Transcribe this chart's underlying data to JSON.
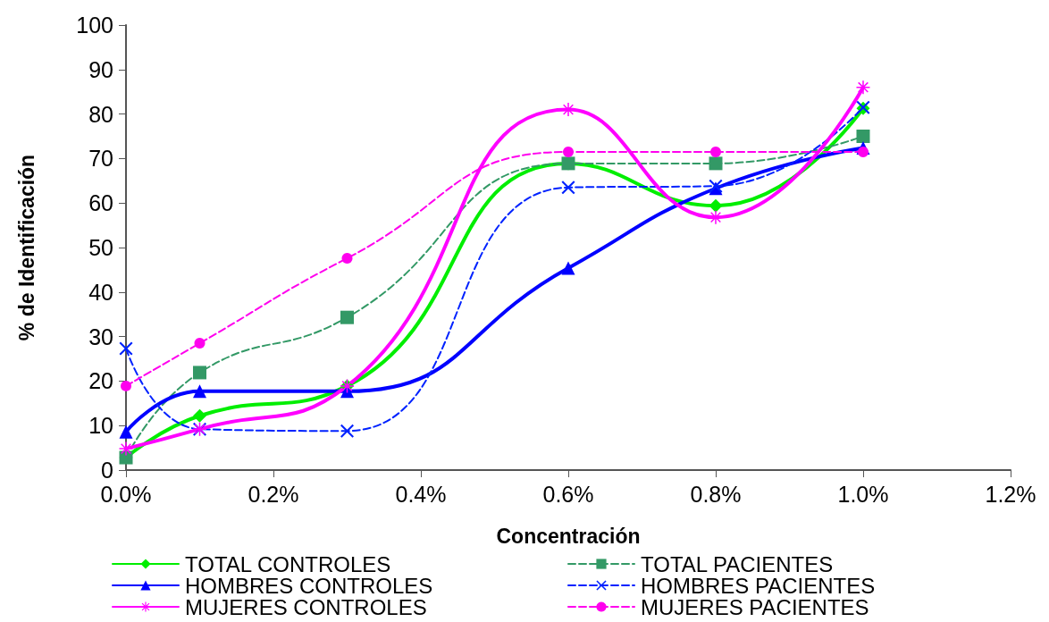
{
  "chart_data": {
    "type": "line",
    "xlabel": "Concentración",
    "ylabel": "% de Identificación",
    "x": [
      0,
      0.1,
      0.3,
      0.6,
      0.8,
      1.0
    ],
    "xlim": [
      0,
      1.2
    ],
    "xticks": [
      {
        "value": 0,
        "label": "0.0%"
      },
      {
        "value": 0.2,
        "label": "0.2%"
      },
      {
        "value": 0.4,
        "label": "0.4%"
      },
      {
        "value": 0.6,
        "label": "0.6%"
      },
      {
        "value": 0.8,
        "label": "0.8%"
      },
      {
        "value": 1.0,
        "label": "1.0%"
      },
      {
        "value": 1.2,
        "label": "1.2%"
      }
    ],
    "ylim": [
      0,
      100
    ],
    "yticks": [
      0,
      10,
      20,
      30,
      40,
      50,
      60,
      70,
      80,
      90,
      100
    ],
    "grid": false,
    "legend": "bottom",
    "series": [
      {
        "name": "TOTAL CONTROLES",
        "color": "#00ee00",
        "marker": "diamond",
        "line_style": "solid",
        "values": [
          2.8,
          12.2,
          18.9,
          68.9,
          59.4,
          81.3
        ]
      },
      {
        "name": "TOTAL PACIENTES",
        "color": "#339966",
        "marker": "square",
        "line_style": "dashed",
        "values": [
          2.8,
          21.9,
          34.3,
          68.9,
          68.9,
          75
        ]
      },
      {
        "name": "HOMBRES CONTROLES",
        "color": "#0000ff",
        "marker": "triangle",
        "line_style": "solid",
        "values": [
          8.6,
          17.7,
          17.7,
          45.4,
          63.3,
          72.4
        ]
      },
      {
        "name": "HOMBRES PACIENTES",
        "color": "#0022ff",
        "marker": "cross",
        "line_style": "dashed",
        "values": [
          27.3,
          9.2,
          8.8,
          63.5,
          63.8,
          81.5
        ]
      },
      {
        "name": "MUJERES CONTROLES",
        "color": "#ff00ff",
        "marker": "star",
        "line_style": "solid",
        "values": [
          4.8,
          9.2,
          18.9,
          81,
          56.8,
          86
        ]
      },
      {
        "name": "MUJERES PACIENTES",
        "color": "#ff00ee",
        "marker": "circle",
        "line_style": "dashed",
        "values": [
          18.9,
          28.5,
          47.6,
          71.5,
          71.5,
          71.5
        ]
      }
    ]
  }
}
